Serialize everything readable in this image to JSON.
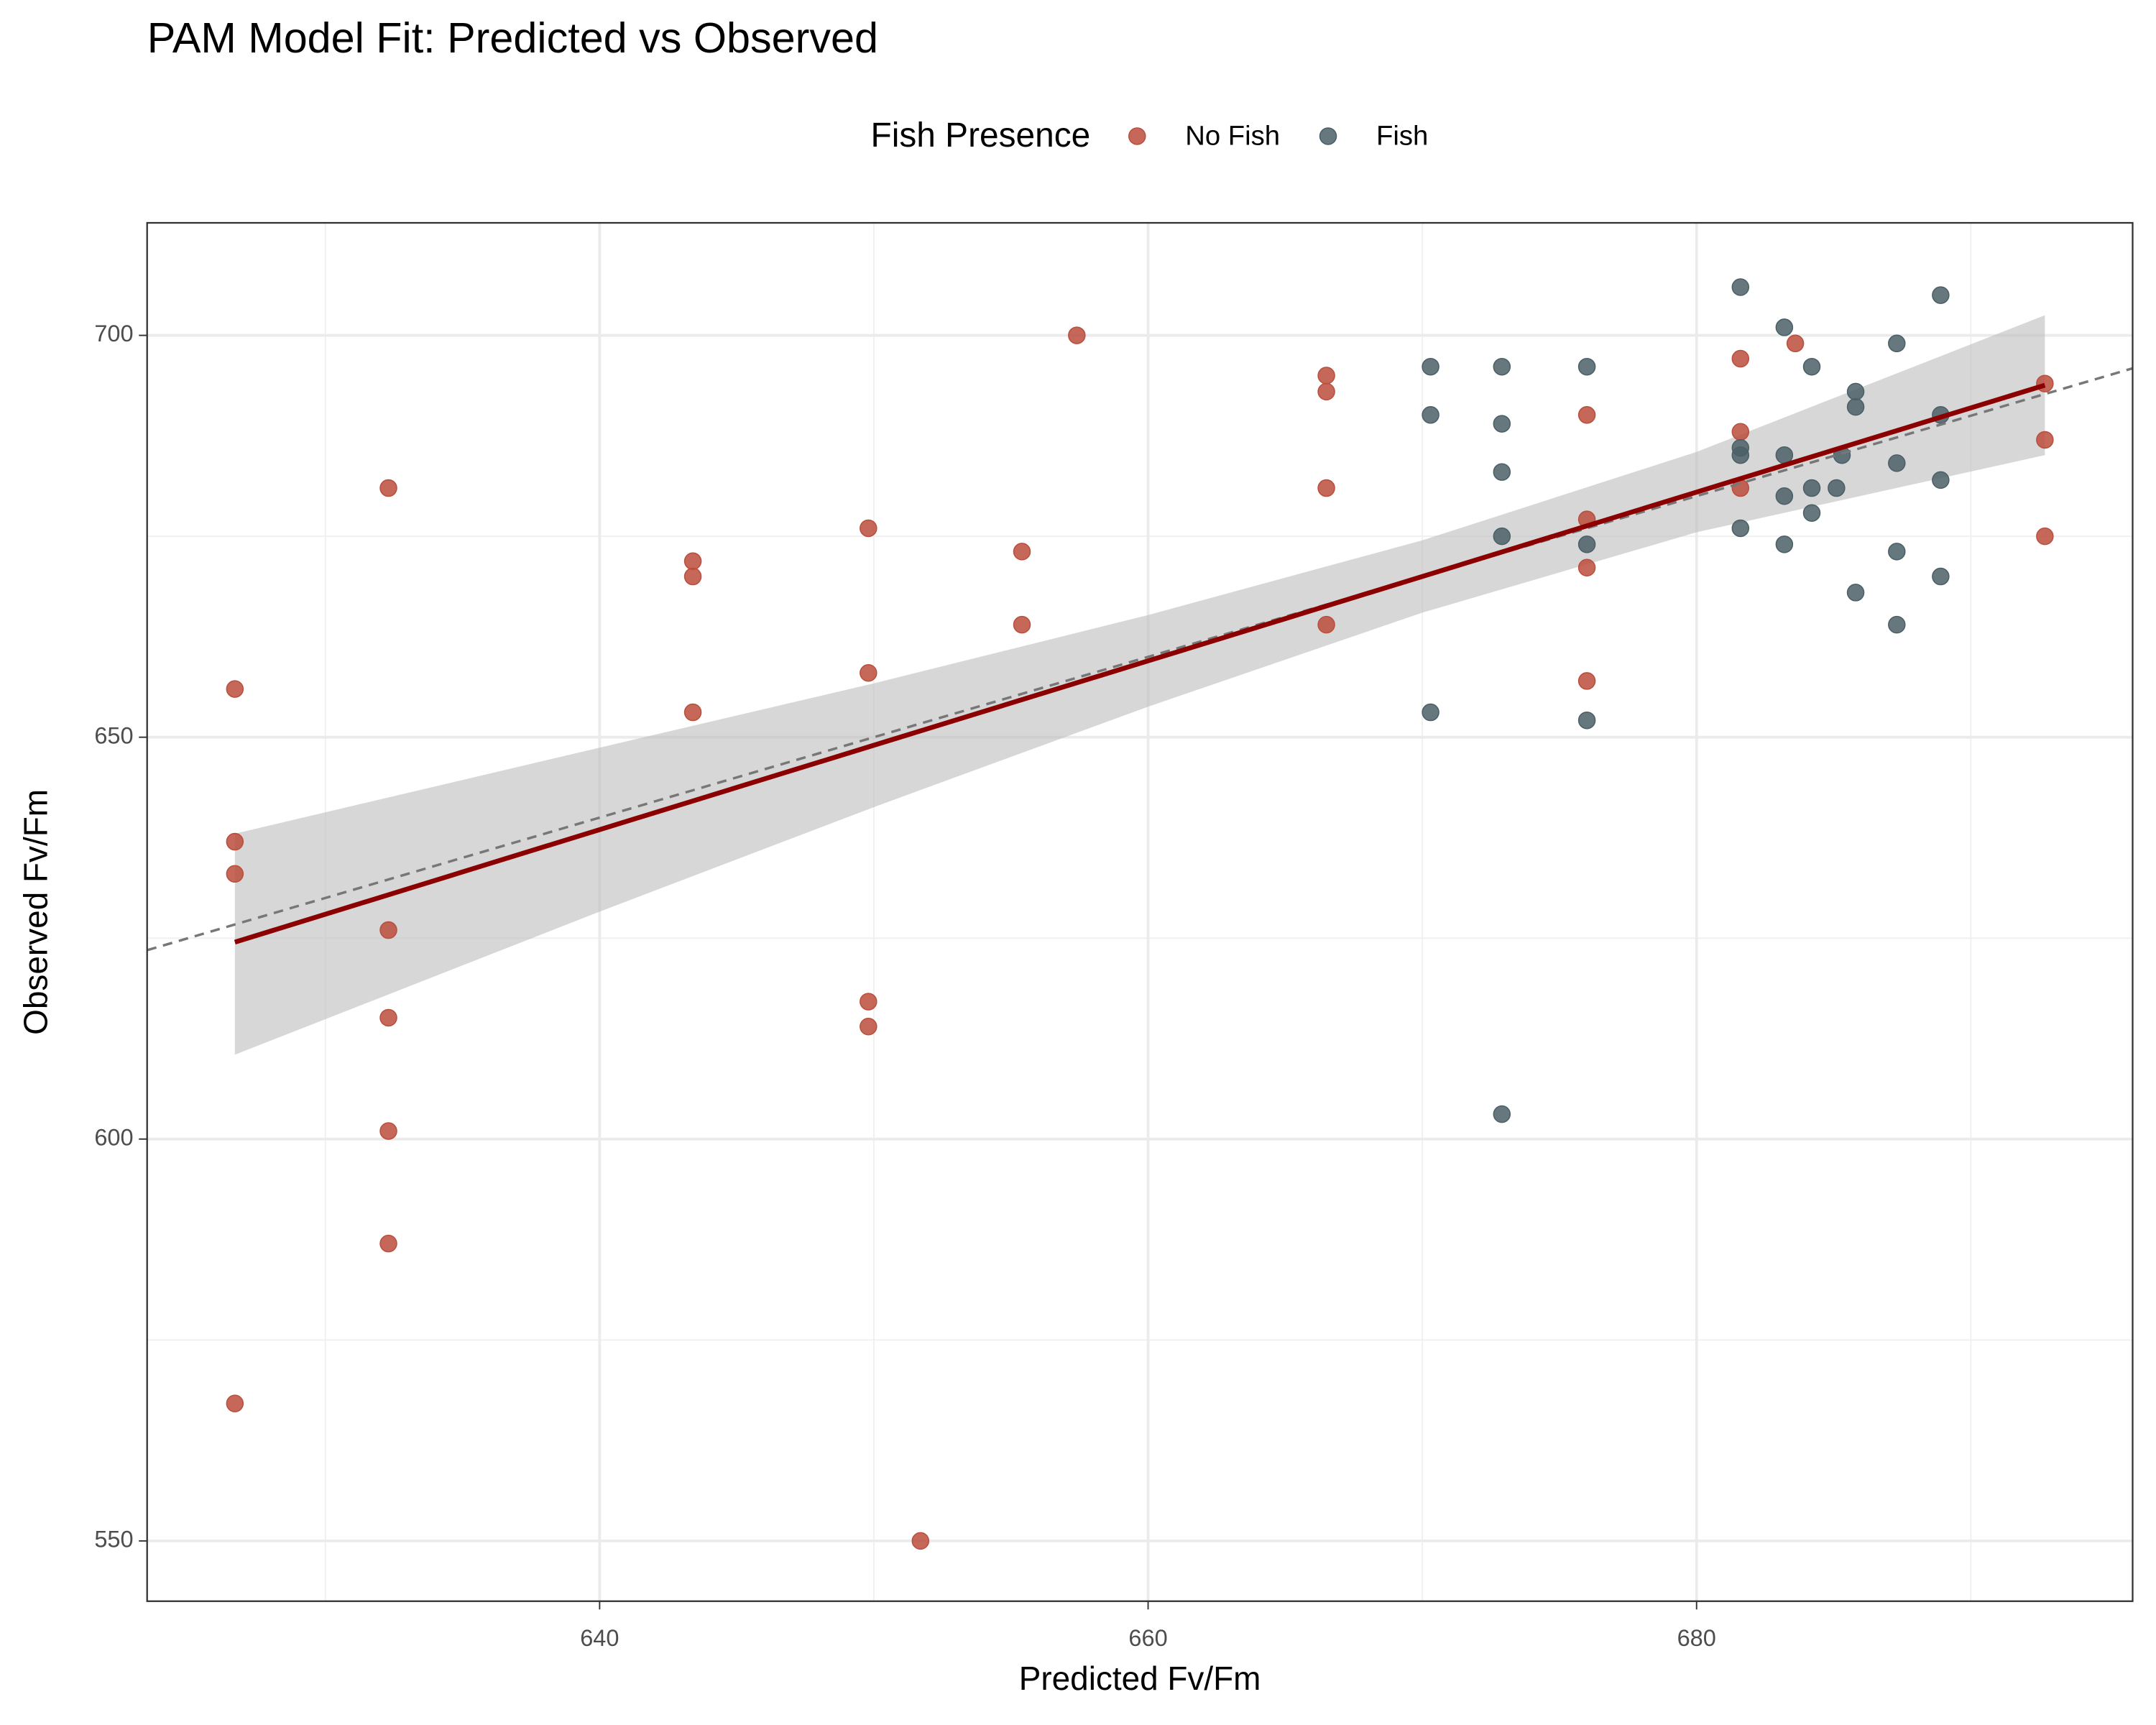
{
  "chart_data": {
    "type": "scatter",
    "title": "PAM Model Fit: Predicted vs Observed",
    "x_label": "Predicted Fv/Fm",
    "y_label": "Observed Fv/Fm",
    "legend_title": "Fish Presence",
    "legend_position": "top",
    "grid": true,
    "xlim": [
      623.5,
      695.9
    ],
    "ylim": [
      542.5,
      714.0
    ],
    "xticks": [
      640,
      660,
      680
    ],
    "yticks": [
      550,
      600,
      650,
      700
    ],
    "minor_xticks": [
      630,
      650,
      670,
      690
    ],
    "minor_yticks": [
      575,
      625,
      675
    ],
    "identity_line": true,
    "series": [
      {
        "name": "No Fish",
        "color": "#bb4e3c",
        "x": [
          626.7,
          626.7,
          626.7,
          626.7,
          632.3,
          632.3,
          632.3,
          632.3,
          632.3,
          643.4,
          643.4,
          643.4,
          649.8,
          649.8,
          649.8,
          649.8,
          651.7,
          655.4,
          655.4,
          657.4,
          666.5,
          666.5,
          666.5,
          666.5,
          676.0,
          676.0,
          676.0,
          676.0,
          681.6,
          681.6,
          681.6,
          683.6,
          692.7,
          692.7,
          692.7
        ],
        "values": [
          656.0,
          637.0,
          633.0,
          567.1,
          681.0,
          626.0,
          615.1,
          601.0,
          587.0,
          671.9,
          670.0,
          653.1,
          676.0,
          658.0,
          617.1,
          614.0,
          550.0,
          673.1,
          664.0,
          700.0,
          695.0,
          693.0,
          681.0,
          664.0,
          690.1,
          677.1,
          671.1,
          657.0,
          697.1,
          688.0,
          681.0,
          699.0,
          694.0,
          687.0,
          675.0
        ]
      },
      {
        "name": "Fish",
        "color": "#4b5f67",
        "x": [
          670.3,
          670.3,
          670.3,
          672.9,
          672.9,
          672.9,
          672.9,
          672.9,
          676.0,
          676.0,
          676.0,
          681.6,
          681.6,
          681.6,
          681.6,
          683.2,
          683.2,
          683.2,
          683.2,
          684.2,
          684.2,
          684.2,
          685.1,
          685.3,
          685.8,
          685.8,
          685.8,
          687.3,
          687.3,
          687.3,
          687.3,
          688.9,
          688.9,
          688.9,
          688.9
        ],
        "values": [
          696.1,
          690.1,
          653.1,
          696.1,
          689.0,
          683.0,
          675.0,
          603.1,
          696.1,
          674.0,
          652.1,
          706.0,
          686.0,
          685.1,
          676.0,
          701.0,
          685.1,
          680.0,
          674.0,
          696.1,
          681.0,
          677.9,
          681.0,
          685.1,
          693.0,
          691.1,
          668.0,
          699.0,
          684.1,
          673.1,
          664.0,
          705.0,
          690.1,
          682.0,
          670.0
        ]
      }
    ],
    "fit": {
      "color": "#8b0000",
      "band_color": "#bdbdbd",
      "x": [
        626.7,
        640,
        650,
        660,
        670,
        680,
        692.7
      ],
      "y": [
        624.5,
        638.5,
        649.0,
        659.5,
        670.0,
        680.5,
        693.8
      ],
      "lower": [
        610.5,
        628.3,
        641.3,
        653.8,
        665.5,
        675.5,
        685.1
      ],
      "upper": [
        638.0,
        648.7,
        656.7,
        665.2,
        674.5,
        685.5,
        702.5
      ]
    }
  }
}
